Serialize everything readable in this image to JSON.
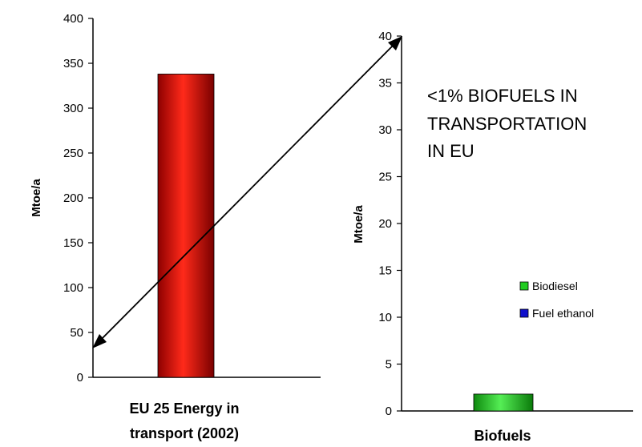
{
  "chart_data": [
    {
      "type": "bar",
      "title": "",
      "categories": [
        [
          "EU 25 Energy in",
          "transport (2002)"
        ]
      ],
      "values": [
        338
      ],
      "ylabel": "Mtoe/a",
      "xlabel": "",
      "ylim": [
        0,
        400
      ],
      "yticks": [
        0,
        50,
        100,
        150,
        200,
        250,
        300,
        350,
        400
      ],
      "bar_color": "#dd0f0f",
      "grid": false
    },
    {
      "type": "bar",
      "title": "",
      "categories": [
        "Biofuels"
      ],
      "series": [
        {
          "name": "Biodiesel",
          "values": [
            1.8
          ],
          "color": "#22cc22"
        },
        {
          "name": "Fuel ethanol",
          "values": [
            0
          ],
          "color": "#1010cc"
        }
      ],
      "ylabel": "Mtoe/a",
      "xlabel": "",
      "ylim": [
        0,
        40
      ],
      "yticks": [
        0,
        5,
        10,
        15,
        20,
        25,
        30,
        35,
        40
      ],
      "legend_position": "right",
      "grid": false
    }
  ],
  "annotation": {
    "lines": [
      "<1% BIOFUELS IN",
      "TRANSPORTATION",
      "IN EU"
    ],
    "arrow": "double-headed, linking the top of the Biofuels axis (40) to about 35 on the left axis"
  }
}
